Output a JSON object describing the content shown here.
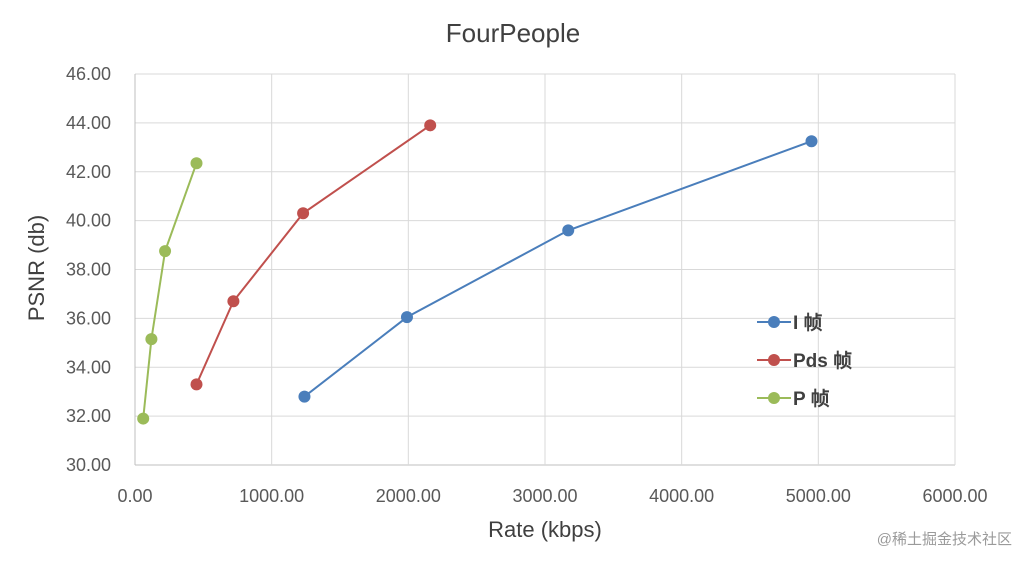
{
  "chart_data": {
    "type": "line",
    "title": "FourPeople",
    "xlabel": "Rate (kbps)",
    "ylabel": "PSNR (db)",
    "xlim": [
      0,
      6000
    ],
    "ylim": [
      30,
      46
    ],
    "x_ticks": [
      "0.00",
      "1000.00",
      "2000.00",
      "3000.00",
      "4000.00",
      "5000.00",
      "6000.00"
    ],
    "y_ticks": [
      "30.00",
      "32.00",
      "34.00",
      "36.00",
      "38.00",
      "40.00",
      "42.00",
      "44.00",
      "46.00"
    ],
    "grid": true,
    "legend_position": "right",
    "series": [
      {
        "name": "I 帧",
        "color": "#4a7ebb",
        "points": [
          [
            1240,
            32.8
          ],
          [
            1990,
            36.05
          ],
          [
            3170,
            39.6
          ],
          [
            4950,
            43.25
          ]
        ]
      },
      {
        "name": "Pds 帧",
        "color": "#c0504d",
        "points": [
          [
            450,
            33.3
          ],
          [
            720,
            36.7
          ],
          [
            1230,
            40.3
          ],
          [
            2160,
            43.9
          ]
        ]
      },
      {
        "name": "P 帧",
        "color": "#9bbb59",
        "points": [
          [
            60,
            31.9
          ],
          [
            120,
            35.15
          ],
          [
            220,
            38.75
          ],
          [
            450,
            42.35
          ]
        ]
      }
    ]
  },
  "watermark": "@稀土掘金技术社区"
}
